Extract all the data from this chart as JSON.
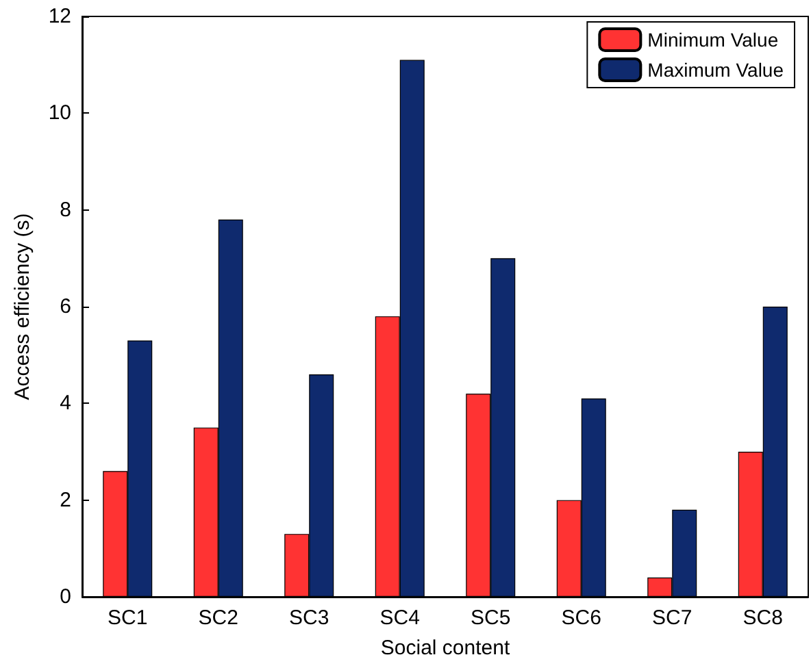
{
  "chart_data": {
    "type": "bar",
    "xlabel": "Social content",
    "ylabel": "Access efficiency (s)",
    "categories": [
      "SC1",
      "SC2",
      "SC3",
      "SC4",
      "SC5",
      "SC6",
      "SC7",
      "SC8"
    ],
    "series": [
      {
        "name": "Minimum Value",
        "color": "#ff3333",
        "values": [
          2.6,
          3.5,
          1.3,
          5.8,
          4.2,
          2.0,
          0.4,
          3.0
        ]
      },
      {
        "name": "Maximum Value",
        "color": "#0f2a6e",
        "values": [
          5.3,
          7.8,
          4.6,
          11.1,
          7.0,
          4.1,
          1.8,
          6.0
        ]
      }
    ],
    "ylim": [
      0,
      12
    ],
    "yticks": [
      0,
      2,
      4,
      6,
      8,
      10,
      12
    ],
    "legend": "top right"
  }
}
